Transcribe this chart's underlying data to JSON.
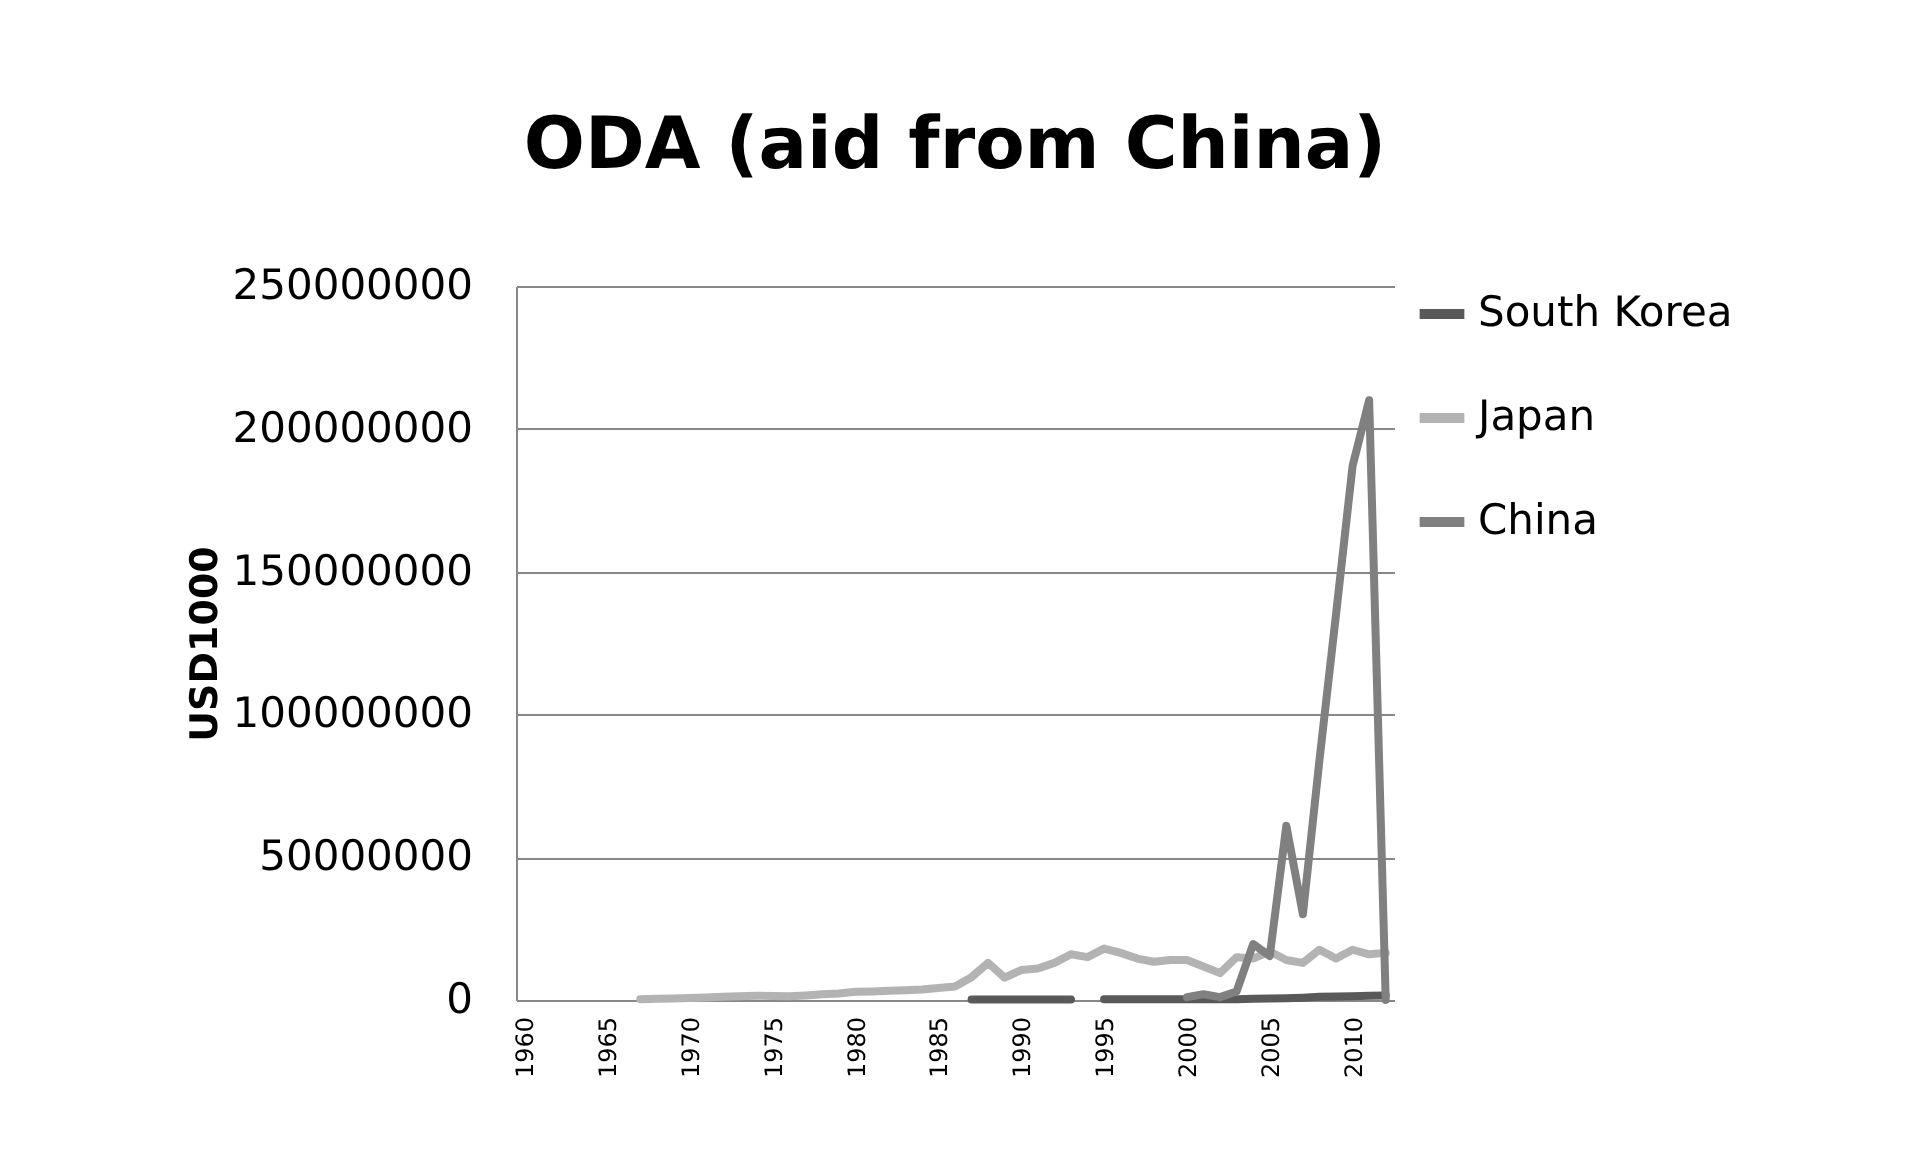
{
  "chart_data": {
    "type": "line",
    "title": "ODA (aid from China)",
    "ylabel": "USD1000",
    "x": [
      1967,
      1968,
      1969,
      1970,
      1971,
      1972,
      1973,
      1974,
      1975,
      1976,
      1977,
      1978,
      1979,
      1980,
      1981,
      1982,
      1983,
      1984,
      1985,
      1986,
      1987,
      1988,
      1989,
      1990,
      1991,
      1992,
      1993,
      1994,
      1995,
      1996,
      1997,
      1998,
      1999,
      2000,
      2001,
      2002,
      2003,
      2004,
      2005,
      2006,
      2007,
      2008,
      2009,
      2010,
      2011,
      2012
    ],
    "xlim": [
      1959.5,
      2012.5
    ],
    "xticks": [
      1960,
      1965,
      1970,
      1975,
      1980,
      1985,
      1990,
      1995,
      2000,
      2005,
      2010
    ],
    "ylim": [
      0,
      250000000
    ],
    "yticks": [
      0,
      50000000,
      100000000,
      150000000,
      200000000,
      250000000
    ],
    "grid": "y",
    "legend": "right",
    "line_style": "solid",
    "marker": "none",
    "series": [
      {
        "name": "South Korea",
        "color": "#595959",
        "values": [
          null,
          null,
          null,
          null,
          null,
          null,
          null,
          null,
          null,
          null,
          null,
          null,
          null,
          null,
          null,
          null,
          null,
          null,
          null,
          null,
          200000,
          200000,
          200000,
          200000,
          200000,
          200000,
          200000,
          null,
          300000,
          300000,
          300000,
          300000,
          300000,
          300000,
          300000,
          300000,
          300000,
          400000,
          500000,
          600000,
          800000,
          1100000,
          1200000,
          1300000,
          1500000,
          1600000
        ]
      },
      {
        "name": "Japan",
        "color": "#b3b3b3",
        "values": [
          300000,
          400000,
          500000,
          700000,
          900000,
          1100000,
          1300000,
          1500000,
          1400000,
          1300000,
          1600000,
          2000000,
          2300000,
          2900000,
          3000000,
          3200000,
          3400000,
          3700000,
          4200000,
          4700000,
          8000000,
          13000000,
          7800000,
          10500000,
          11000000,
          13000000,
          16000000,
          15000000,
          18000000,
          16500000,
          14500000,
          13400000,
          14000000,
          14000000,
          11700000,
          9400000,
          15000000,
          14500000,
          17000000,
          14000000,
          13000000,
          17600000,
          14500000,
          17600000,
          16000000,
          16500000
        ]
      },
      {
        "name": "China",
        "color": "#808080",
        "values": [
          null,
          null,
          null,
          null,
          null,
          null,
          null,
          null,
          null,
          null,
          null,
          null,
          null,
          null,
          null,
          null,
          null,
          null,
          null,
          null,
          null,
          null,
          null,
          null,
          null,
          null,
          null,
          null,
          null,
          null,
          null,
          null,
          null,
          1000000,
          2000000,
          1000000,
          3000000,
          19600000,
          15400000,
          61000000,
          30000000,
          84000000,
          135000000,
          187000000,
          210000000,
          0
        ]
      }
    ]
  }
}
